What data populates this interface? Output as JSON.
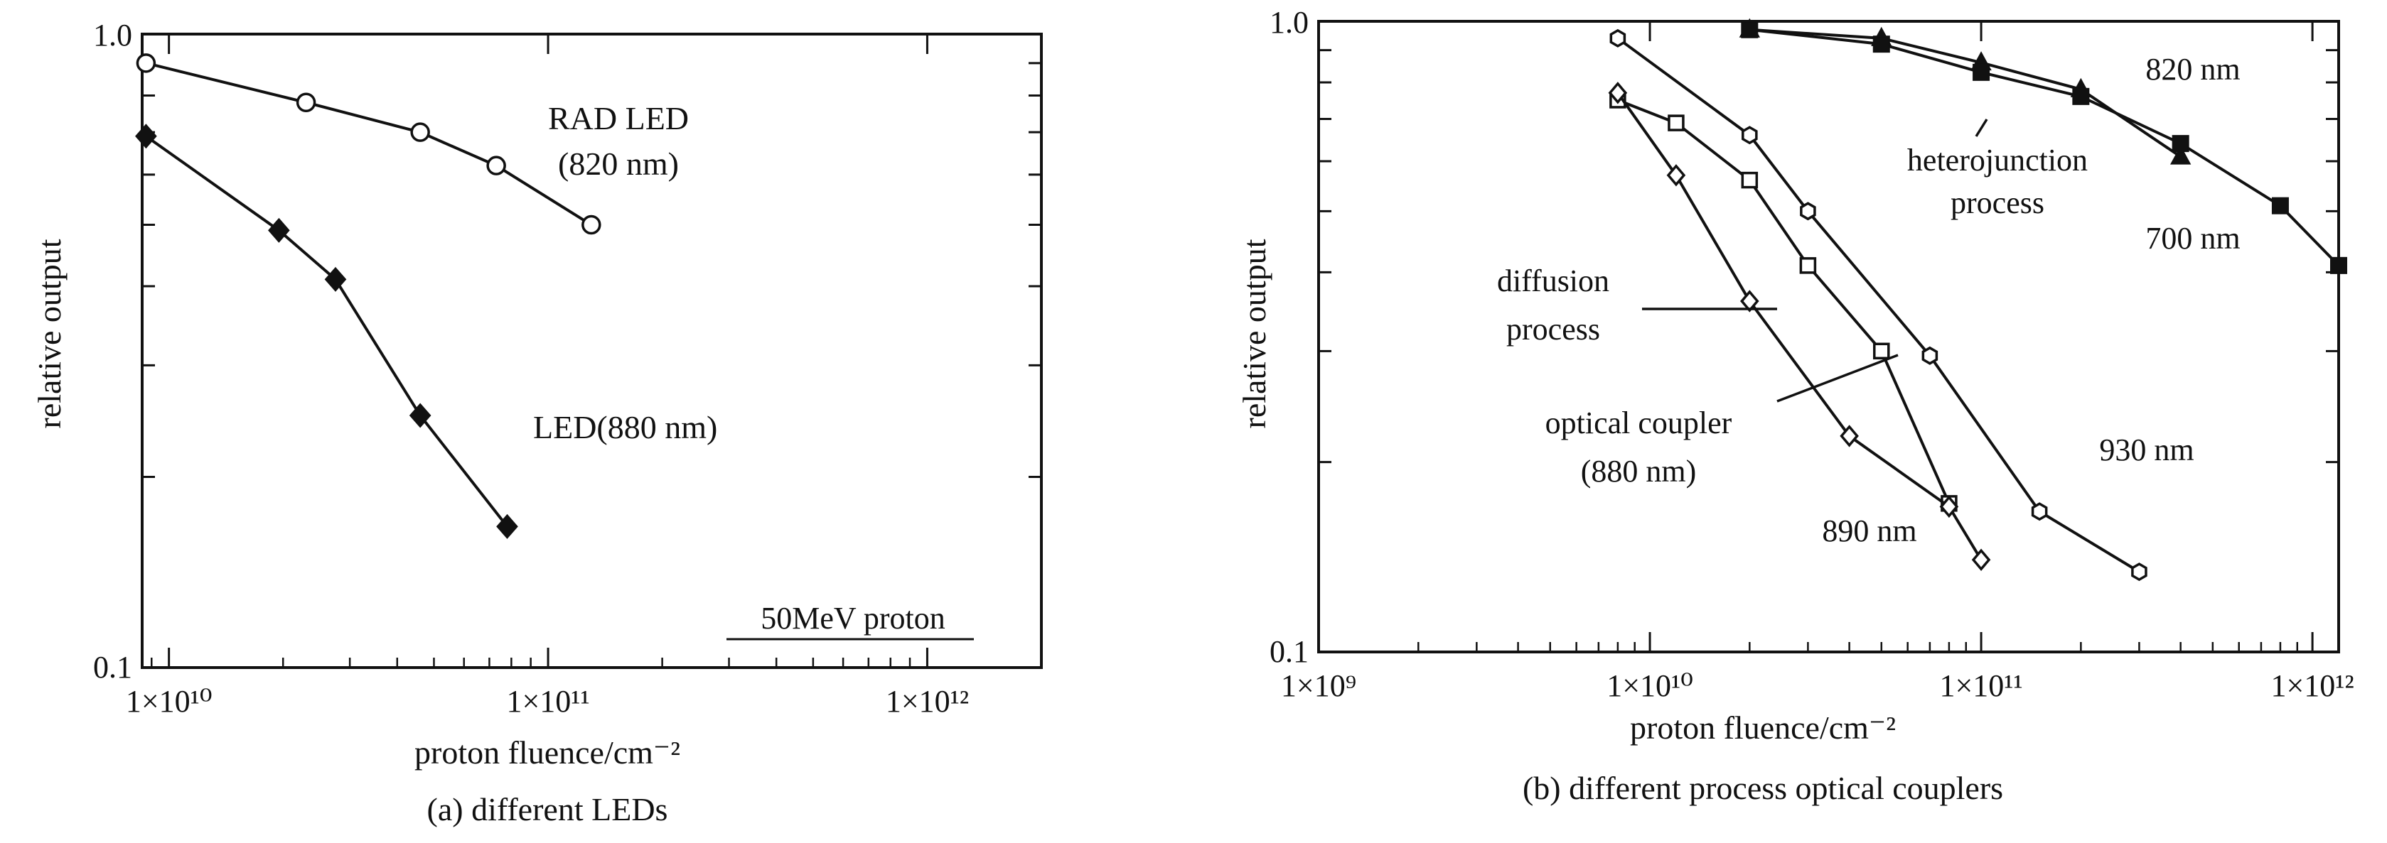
{
  "chart_data": [
    {
      "type": "line",
      "panel": "a",
      "caption": "(a) different LEDs",
      "xlabel": "proton fluence/cm⁻²",
      "ylabel": "relative output",
      "xscale": "log",
      "yscale": "log",
      "xlim": [
        8500000000.0,
        2000000000000.0
      ],
      "ylim": [
        0.1,
        1.0
      ],
      "x_ticks": [
        10000000000.0,
        100000000000.0,
        1000000000000.0
      ],
      "x_tick_labels": [
        "1×10¹⁰",
        "1×10¹¹",
        "1×10¹²"
      ],
      "y_ticks": [
        0.1,
        1.0
      ],
      "y_tick_labels": [
        "0.1",
        "1.0"
      ],
      "series": [
        {
          "name": "RAD LED (820 nm)",
          "marker": "open-circle",
          "x": [
            8700000000.0,
            23000000000.0,
            46000000000.0,
            73000000000.0,
            130000000000.0
          ],
          "y": [
            0.9,
            0.78,
            0.7,
            0.62,
            0.5
          ]
        },
        {
          "name": "LED(880 nm)",
          "marker": "filled-diamond",
          "x": [
            8700000000.0,
            19500000000.0,
            27500000000.0,
            46000000000.0,
            78000000000.0
          ],
          "y": [
            0.69,
            0.49,
            0.41,
            0.25,
            0.167
          ]
        }
      ],
      "annotations": [
        {
          "lines": [
            "RAD LED",
            "(820 nm)"
          ]
        },
        {
          "lines": [
            "LED(880 nm)"
          ]
        },
        {
          "lines": [
            "50MeV proton"
          ],
          "underline": true
        }
      ]
    },
    {
      "type": "line",
      "panel": "b",
      "caption": "(b) different process optical couplers",
      "xlabel": "proton fluence/cm⁻²",
      "ylabel": "relative output",
      "xscale": "log",
      "yscale": "log",
      "xlim": [
        1000000000.0,
        1200000000000.0
      ],
      "ylim": [
        0.1,
        1.0
      ],
      "x_ticks": [
        1000000000.0,
        10000000000.0,
        100000000000.0,
        1000000000000.0
      ],
      "x_tick_labels": [
        "1×10⁹",
        "1×10¹⁰",
        "1×10¹¹",
        "1×10¹²"
      ],
      "y_ticks": [
        0.1,
        1.0
      ],
      "y_tick_labels": [
        "0.1",
        "1.0"
      ],
      "series": [
        {
          "name": "820 nm",
          "marker": "filled-triangle",
          "x": [
            20000000000.0,
            50000000000.0,
            100000000000.0,
            200000000000.0,
            400000000000.0
          ],
          "y": [
            0.97,
            0.94,
            0.86,
            0.78,
            0.61
          ]
        },
        {
          "name": "700 nm",
          "marker": "filled-square",
          "x": [
            20000000000.0,
            50000000000.0,
            100000000000.0,
            200000000000.0,
            400000000000.0,
            800000000000.0,
            1200000000000.0
          ],
          "y": [
            0.97,
            0.92,
            0.83,
            0.76,
            0.64,
            0.51,
            0.41
          ]
        },
        {
          "name": "930 nm",
          "marker": "open-hexagon",
          "x": [
            8000000000.0,
            20000000000.0,
            30000000000.0,
            70000000000.0,
            150000000000.0,
            300000000000.0
          ],
          "y": [
            0.94,
            0.66,
            0.5,
            0.295,
            0.167,
            0.134
          ]
        },
        {
          "name": "optical coupler (880 nm)",
          "marker": "open-square",
          "x": [
            8000000000.0,
            12000000000.0,
            20000000000.0,
            30000000000.0,
            50000000000.0,
            80000000000.0
          ],
          "y": [
            0.75,
            0.69,
            0.56,
            0.41,
            0.3,
            0.172
          ]
        },
        {
          "name": "890 nm",
          "marker": "open-diamond",
          "x": [
            8000000000.0,
            12000000000.0,
            20000000000.0,
            40000000000.0,
            80000000000.0,
            100000000000.0
          ],
          "y": [
            0.77,
            0.57,
            0.36,
            0.22,
            0.17,
            0.14
          ]
        }
      ],
      "annotations": [
        {
          "lines": [
            "820 nm"
          ]
        },
        {
          "lines": [
            "heterojunction",
            "process"
          ]
        },
        {
          "lines": [
            "700 nm"
          ]
        },
        {
          "lines": [
            "diffusion",
            "process"
          ]
        },
        {
          "lines": [
            "optical coupler",
            "(880 nm)"
          ]
        },
        {
          "lines": [
            "930 nm"
          ]
        },
        {
          "lines": [
            "890 nm"
          ]
        }
      ]
    }
  ]
}
